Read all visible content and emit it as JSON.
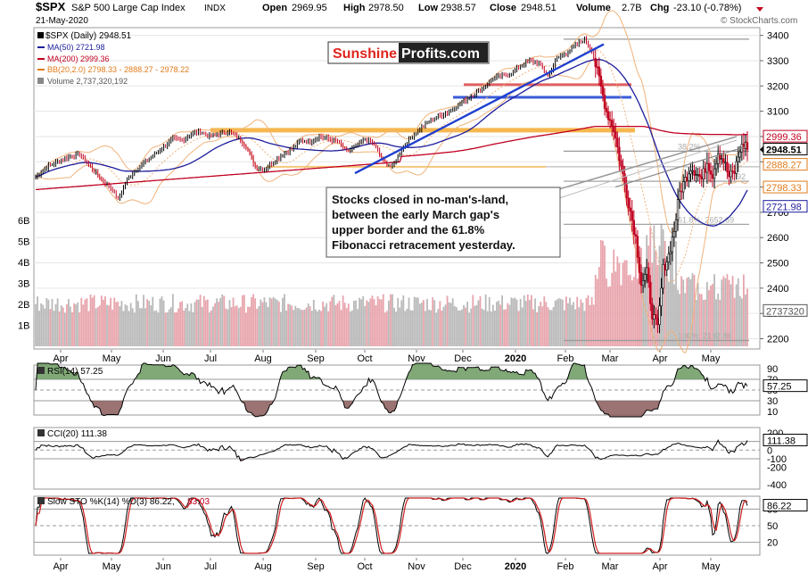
{
  "header": {
    "symbol": "$SPX",
    "name": "S&P 500 Large Cap Index",
    "exchange": "INDX",
    "date": "21-May-2020",
    "open_label": "Open",
    "open": "2969.95",
    "high_label": "High",
    "high": "2978.50",
    "low_label": "Low",
    "low": "2938.57",
    "close_label": "Close",
    "close": "2948.51",
    "volume_label": "Volume",
    "volume": "2.7B",
    "chg_label": "Chg",
    "chg": "-23.10 (-0.78%)",
    "copyright": "© StockCharts.com"
  },
  "watermark": {
    "part1": "Sunshine",
    "part2": "Profits.com"
  },
  "legend": [
    {
      "text": "$SPX (Daily) 2948.51",
      "color": "#000000"
    },
    {
      "text": "MA(50) 2721.98",
      "color": "#1c1c9c"
    },
    {
      "text": "MA(200) 2999.36",
      "color": "#c00020"
    },
    {
      "text": "BB(20,2.0) 2798.33 - 2888.27 - 2978.22",
      "color": "#e07b1a"
    },
    {
      "text": "Volume 2,737,320,192",
      "color": "#555555"
    }
  ],
  "annotation": "Stocks closed in no-man's-land, between the early March gap's upper border and the 61.8% Fibonacci retracement yesterday.",
  "fib_labels": [
    {
      "text": "38.2%",
      "price": 2942
    },
    {
      "text": "61.8%: 2652.69",
      "price": 2652.69
    },
    {
      "text": "100%: 2192.86",
      "price": 2192.86
    },
    {
      "text": "92",
      "price": 2823
    }
  ],
  "months": [
    "Apr",
    "May",
    "Jun",
    "Jul",
    "Aug",
    "Sep",
    "Oct",
    "Nov",
    "Dec",
    "2020",
    "Feb",
    "Mar",
    "Apr",
    "May"
  ],
  "panels": {
    "rsi": {
      "title": "RSI(14) 57.25",
      "value": "57.25",
      "ticks": [
        "90",
        "70",
        "50",
        "30",
        "10"
      ]
    },
    "cci": {
      "title": "CCI(20) 111.38",
      "value": "111.38",
      "ticks": [
        "200",
        "100",
        "0",
        "-100",
        "-200",
        "-400"
      ]
    },
    "sto": {
      "title_a": "Slow STO %K(14) %D(3) 86.22,",
      "title_b": "83.03",
      "value": "86.22",
      "ticks": [
        "80",
        "50",
        "20"
      ]
    }
  },
  "chart_data": {
    "type": "line",
    "title": "$SPX S&P 500 Large Cap Index INDX",
    "price_axis": {
      "ticks": [
        3400,
        3300,
        3200,
        3100,
        3000,
        2900,
        2800,
        2700,
        2600,
        2500,
        2400,
        2300,
        2200
      ],
      "ylim": [
        2170,
        3420
      ]
    },
    "volume_axis": {
      "ticks": [
        "6B",
        "5B",
        "4B",
        "3B",
        "2B",
        "1B"
      ],
      "ylim": [
        0,
        7
      ]
    },
    "last_value_labels": [
      {
        "text": "2999.36",
        "price": 2999.36,
        "color": "#c00020",
        "bold": false
      },
      {
        "text": "2948.51",
        "price": 2948.51,
        "color": "#000000",
        "bold": true
      },
      {
        "text": "2888.27",
        "price": 2888.27,
        "color": "#e07b1a",
        "bold": false
      },
      {
        "text": "2798.33",
        "price": 2798.33,
        "color": "#e07b1a",
        "bold": false
      },
      {
        "text": "2721.98",
        "price": 2721.98,
        "color": "#1c1c9c",
        "bold": false
      },
      {
        "text": "2737320",
        "price": 2310,
        "color": "#555555",
        "bold": false
      }
    ],
    "price_anchors": [
      [
        0,
        2840
      ],
      [
        6,
        2880
      ],
      [
        12,
        2900
      ],
      [
        18,
        2920
      ],
      [
        24,
        2930
      ],
      [
        30,
        2880
      ],
      [
        36,
        2830
      ],
      [
        42,
        2790
      ],
      [
        45,
        2750
      ],
      [
        50,
        2830
      ],
      [
        55,
        2870
      ],
      [
        60,
        2900
      ],
      [
        65,
        2930
      ],
      [
        70,
        2960
      ],
      [
        75,
        2990
      ],
      [
        80,
        2985
      ],
      [
        85,
        3010
      ],
      [
        90,
        3020
      ],
      [
        95,
        3000
      ],
      [
        100,
        3010
      ],
      [
        105,
        3020
      ],
      [
        110,
        3000
      ],
      [
        115,
        2960
      ],
      [
        120,
        2880
      ],
      [
        125,
        2870
      ],
      [
        130,
        2900
      ],
      [
        135,
        2930
      ],
      [
        140,
        2950
      ],
      [
        145,
        2985
      ],
      [
        150,
        2980
      ],
      [
        155,
        3000
      ],
      [
        160,
        2990
      ],
      [
        165,
        2980
      ],
      [
        170,
        2940
      ],
      [
        175,
        2960
      ],
      [
        180,
        2990
      ],
      [
        185,
        2970
      ],
      [
        190,
        2900
      ],
      [
        195,
        2880
      ],
      [
        200,
        2950
      ],
      [
        205,
        2995
      ],
      [
        210,
        3030
      ],
      [
        215,
        3060
      ],
      [
        220,
        3080
      ],
      [
        225,
        3095
      ],
      [
        230,
        3120
      ],
      [
        235,
        3145
      ],
      [
        240,
        3170
      ],
      [
        245,
        3195
      ],
      [
        250,
        3230
      ],
      [
        255,
        3240
      ],
      [
        260,
        3250
      ],
      [
        265,
        3280
      ],
      [
        270,
        3300
      ],
      [
        275,
        3290
      ],
      [
        280,
        3240
      ],
      [
        285,
        3310
      ],
      [
        290,
        3330
      ],
      [
        295,
        3360
      ],
      [
        300,
        3385
      ],
      [
        304,
        3340
      ],
      [
        308,
        3225
      ],
      [
        312,
        3100
      ],
      [
        316,
        3030
      ],
      [
        320,
        2880
      ],
      [
        324,
        2740
      ],
      [
        328,
        2600
      ],
      [
        331,
        2420
      ],
      [
        334,
        2460
      ],
      [
        337,
        2300
      ],
      [
        340,
        2240
      ],
      [
        343,
        2475
      ],
      [
        346,
        2530
      ],
      [
        349,
        2630
      ],
      [
        352,
        2780
      ],
      [
        355,
        2830
      ],
      [
        358,
        2880
      ],
      [
        361,
        2860
      ],
      [
        364,
        2830
      ],
      [
        367,
        2900
      ],
      [
        370,
        2850
      ],
      [
        373,
        2940
      ],
      [
        376,
        2905
      ],
      [
        379,
        2840
      ],
      [
        382,
        2860
      ],
      [
        385,
        2950
      ],
      [
        388,
        2971
      ],
      [
        389,
        2948.51
      ]
    ],
    "series": [
      {
        "name": "$SPX (Daily)",
        "color": "#000000",
        "last": 2948.51
      },
      {
        "name": "MA(50)",
        "color": "#1c1c9c",
        "last": 2721.98
      },
      {
        "name": "MA(200)",
        "color": "#c00020",
        "last": 2999.36
      },
      {
        "name": "BB(20,2.0)",
        "color": "#e07b1a",
        "last": 2888.27,
        "lower": 2798.33,
        "upper": 2978.22
      }
    ]
  }
}
